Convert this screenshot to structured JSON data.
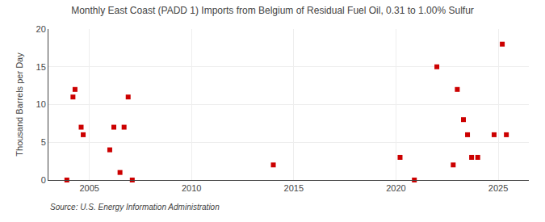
{
  "chart_data": {
    "type": "scatter",
    "title": "Monthly East Coast (PADD 1) Imports from Belgium of Residual Fuel Oil, 0.31 to 1.00% Sulfur",
    "ylabel": "Thousand Barrels per Day",
    "source": "Source: U.S. Energy Information Administration",
    "x": [
      2003.9,
      2004.2,
      2004.3,
      2004.6,
      2004.7,
      2006.0,
      2006.2,
      2006.5,
      2006.7,
      2006.9,
      2007.1,
      2014.0,
      2020.2,
      2020.9,
      2022.0,
      2022.8,
      2023.0,
      2023.3,
      2023.5,
      2023.7,
      2024.0,
      2024.8,
      2025.2,
      2025.4
    ],
    "values": [
      0.0,
      11.0,
      12.0,
      7.0,
      6.0,
      4.0,
      7.0,
      1.0,
      7.0,
      11.0,
      0.0,
      2.0,
      3.0,
      0.0,
      15.0,
      2.0,
      12.0,
      8.0,
      6.0,
      3.0,
      3.0,
      6.0,
      18.0,
      6.0
    ],
    "color": "#cc0000",
    "marker": "square",
    "xlim": [
      2003.0,
      2026.5
    ],
    "ylim": [
      0,
      20
    ],
    "xticks": [
      2005,
      2010,
      2015,
      2020,
      2025
    ],
    "yticks": [
      0,
      5,
      10,
      15,
      20
    ],
    "grid": true
  }
}
